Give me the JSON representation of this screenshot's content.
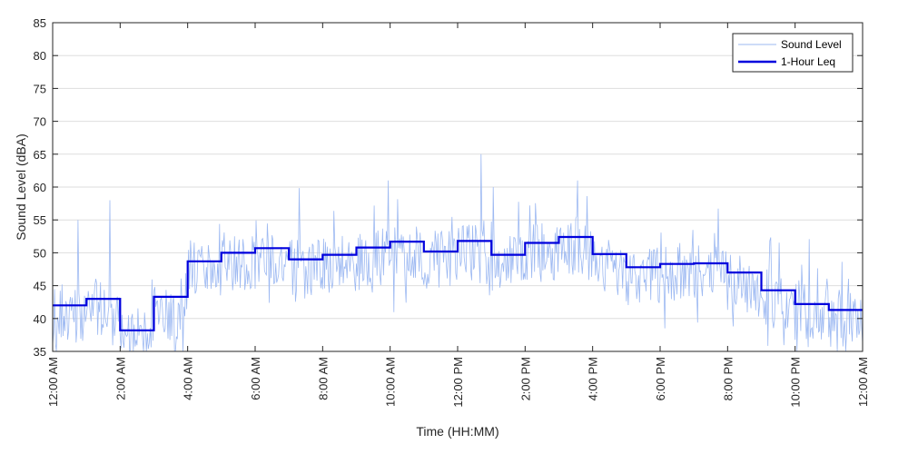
{
  "chart_data": {
    "type": "line",
    "title": "",
    "xlabel": "Time (HH:MM)",
    "ylabel": "Sound Level (dBA)",
    "ylim": [
      35,
      85
    ],
    "xlim_hours": [
      0,
      24
    ],
    "y_ticks": [
      35,
      40,
      45,
      50,
      55,
      60,
      65,
      70,
      75,
      80,
      85
    ],
    "x_ticks": [
      {
        "hour": 0,
        "label": "12:00 AM"
      },
      {
        "hour": 2,
        "label": "2:00 AM"
      },
      {
        "hour": 4,
        "label": "4:00 AM"
      },
      {
        "hour": 6,
        "label": "6:00 AM"
      },
      {
        "hour": 8,
        "label": "8:00 AM"
      },
      {
        "hour": 10,
        "label": "10:00 AM"
      },
      {
        "hour": 12,
        "label": "12:00 PM"
      },
      {
        "hour": 14,
        "label": "2:00 PM"
      },
      {
        "hour": 16,
        "label": "4:00 PM"
      },
      {
        "hour": 18,
        "label": "6:00 PM"
      },
      {
        "hour": 20,
        "label": "8:00 PM"
      },
      {
        "hour": 22,
        "label": "10:00 PM"
      },
      {
        "hour": 24,
        "label": "12:00 AM"
      }
    ],
    "grid": "horizontal",
    "legend_position": "top-right",
    "series": [
      {
        "name": "Sound Level",
        "style": "thin-light-line",
        "color": "#9db9f2",
        "samples_per_hour": 12,
        "note_approximate": true,
        "hourly_mean": [
          40.5,
          41.5,
          37.0,
          40.5,
          47.5,
          48.5,
          49.0,
          47.5,
          48.0,
          49.0,
          50.0,
          49.0,
          50.0,
          48.5,
          50.0,
          51.0,
          48.5,
          46.5,
          47.0,
          47.0,
          45.5,
          43.0,
          41.0,
          39.5
        ],
        "peaks": [
          {
            "hour": 0.75,
            "value": 55
          },
          {
            "hour": 1.7,
            "value": 58
          },
          {
            "hour": 9.95,
            "value": 61
          },
          {
            "hour": 12.7,
            "value": 65
          },
          {
            "hour": 13.05,
            "value": 60
          },
          {
            "hour": 15.55,
            "value": 61
          }
        ]
      },
      {
        "name": "1-Hour Leq",
        "style": "step",
        "color": "#0000dd",
        "hours": [
          0,
          1,
          2,
          3,
          4,
          5,
          6,
          7,
          8,
          9,
          10,
          11,
          12,
          13,
          14,
          15,
          16,
          17,
          18,
          19,
          20,
          21,
          22,
          23
        ],
        "values": [
          42.0,
          43.0,
          38.2,
          43.3,
          48.7,
          50.0,
          50.7,
          49.0,
          49.7,
          50.8,
          51.7,
          50.2,
          51.8,
          49.7,
          51.5,
          52.4,
          49.8,
          47.8,
          48.3,
          48.4,
          47.0,
          44.3,
          42.2,
          41.3
        ]
      }
    ]
  }
}
